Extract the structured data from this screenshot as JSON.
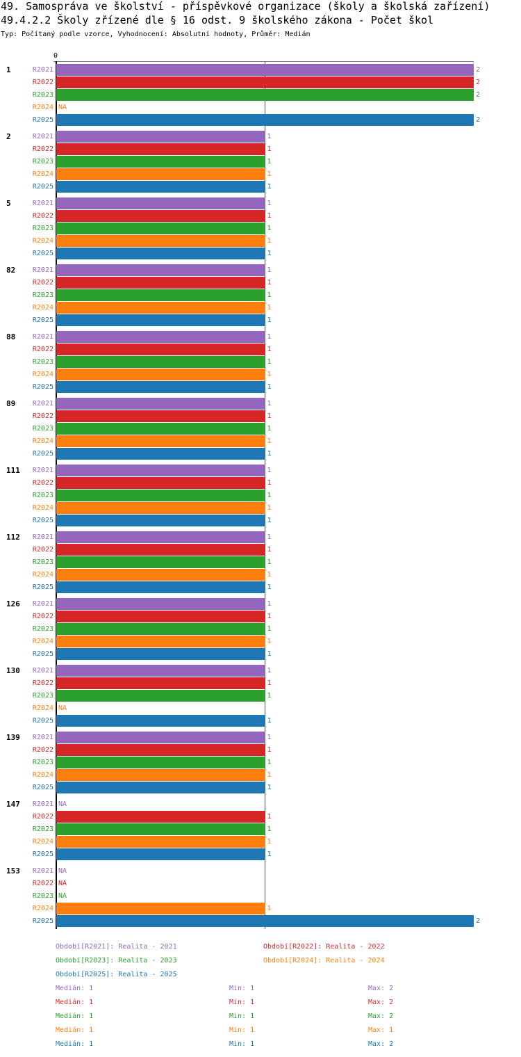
{
  "header": {
    "title": "49. Samospráva ve školství - příspěvkové organizace (školy a školská zařízení)",
    "subtitle": "49.4.2.2 Školy zřízené dle § 16 odst. 9 školského zákona - Počet škol",
    "meta": "Typ: Počítaný podle vzorce, Vyhodnocení: Absolutní hodnoty, Průměr: Medián"
  },
  "chart_data": {
    "type": "bar",
    "orientation": "horizontal",
    "xlim": [
      0,
      2
    ],
    "x_tick_labels": [
      "0"
    ],
    "grid": true,
    "series": [
      {
        "name": "R2021",
        "color": "#9467bd"
      },
      {
        "name": "R2022",
        "color": "#d62728"
      },
      {
        "name": "R2023",
        "color": "#2ca02c"
      },
      {
        "name": "R2024",
        "color": "#ff7f0e"
      },
      {
        "name": "R2025",
        "color": "#1f77b4"
      }
    ],
    "na_label": "NA",
    "groups": [
      {
        "label": "1",
        "values": [
          2,
          2,
          2,
          null,
          2
        ]
      },
      {
        "label": "2",
        "values": [
          1,
          1,
          1,
          1,
          1
        ]
      },
      {
        "label": "5",
        "values": [
          1,
          1,
          1,
          1,
          1
        ]
      },
      {
        "label": "82",
        "values": [
          1,
          1,
          1,
          1,
          1
        ]
      },
      {
        "label": "88",
        "values": [
          1,
          1,
          1,
          1,
          1
        ]
      },
      {
        "label": "89",
        "values": [
          1,
          1,
          1,
          1,
          1
        ]
      },
      {
        "label": "111",
        "values": [
          1,
          1,
          1,
          1,
          1
        ]
      },
      {
        "label": "112",
        "values": [
          1,
          1,
          1,
          1,
          1
        ]
      },
      {
        "label": "126",
        "values": [
          1,
          1,
          1,
          1,
          1
        ]
      },
      {
        "label": "130",
        "values": [
          1,
          1,
          1,
          null,
          1
        ]
      },
      {
        "label": "139",
        "values": [
          1,
          1,
          1,
          1,
          1
        ]
      },
      {
        "label": "147",
        "values": [
          null,
          1,
          1,
          1,
          1
        ]
      },
      {
        "label": "153",
        "values": [
          null,
          null,
          null,
          1,
          2
        ]
      }
    ]
  },
  "legend": {
    "periods": [
      "Období[R2021]: Realita - 2021",
      "Období[R2022]: Realita - 2022",
      "Období[R2023]: Realita - 2023",
      "Období[R2024]: Realita - 2024",
      "Období[R2025]: Realita - 2025"
    ],
    "stats": [
      {
        "median": "Medián: 1",
        "min": "Min: 1",
        "max": "Max: 2"
      },
      {
        "median": "Medián: 1",
        "min": "Min: 1",
        "max": "Max: 2"
      },
      {
        "median": "Medián: 1",
        "min": "Min: 1",
        "max": "Max: 2"
      },
      {
        "median": "Medián: 1",
        "min": "Min: 1",
        "max": "Max: 1"
      },
      {
        "median": "Medián: 1",
        "min": "Min: 1",
        "max": "Max: 2"
      }
    ]
  }
}
